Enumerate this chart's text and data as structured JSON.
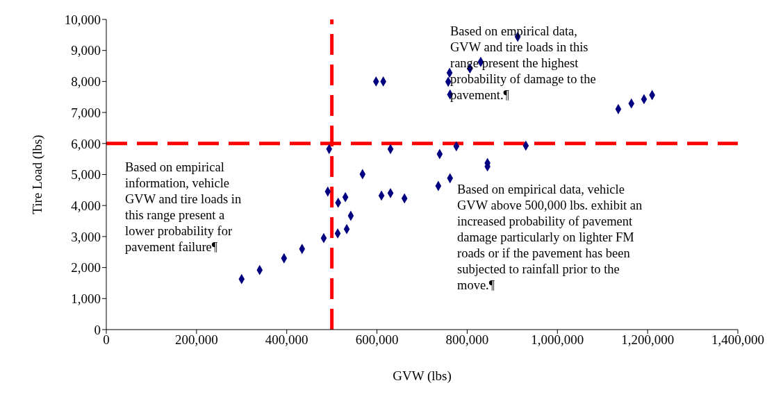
{
  "chart_data": {
    "type": "scatter",
    "xlabel": "GVW (lbs)",
    "ylabel": "Tire Load (lbs)",
    "x": [
      300000,
      340000,
      394000,
      434000,
      482000,
      513000,
      533000,
      542000,
      514000,
      530000,
      491000,
      494000,
      568000,
      610000,
      630000,
      661000,
      630000,
      736000,
      762000,
      739000,
      776000,
      598000,
      614000,
      912000,
      761000,
      758000,
      762000,
      806000,
      830000,
      1135000,
      1164000,
      1192000,
      1210000,
      930000,
      845000,
      845000
    ],
    "series": [
      {
        "color": "#000080",
        "marker": "diamond",
        "values": [
          1630,
          1920,
          2300,
          2600,
          2950,
          3100,
          3240,
          3670,
          4090,
          4270,
          4450,
          5820,
          5010,
          4320,
          4400,
          4230,
          5820,
          4630,
          4880,
          5660,
          5910,
          8000,
          8000,
          9440,
          8280,
          7990,
          7580,
          8420,
          8630,
          7110,
          7290,
          7430,
          7560,
          5930,
          5370,
          5260
        ]
      }
    ],
    "xlim": [
      0,
      1400000
    ],
    "xticks": [
      {
        "value": 0,
        "label": "0"
      },
      {
        "value": 200000,
        "label": "200,000"
      },
      {
        "value": 400000,
        "label": "400,000"
      },
      {
        "value": 600000,
        "label": "600,000"
      },
      {
        "value": 800000,
        "label": "800,000"
      },
      {
        "value": 1000000,
        "label": "1,000,000"
      },
      {
        "value": 1200000,
        "label": "1,200,000"
      },
      {
        "value": 1400000,
        "label": "1,400,000"
      }
    ],
    "ylim": [
      0,
      10000
    ],
    "yticks": [
      {
        "value": 0,
        "label": "0"
      },
      {
        "value": 1000,
        "label": "1,000"
      },
      {
        "value": 2000,
        "label": "2,000"
      },
      {
        "value": 3000,
        "label": "3,000"
      },
      {
        "value": 4000,
        "label": "4,000"
      },
      {
        "value": 5000,
        "label": "5,000"
      },
      {
        "value": 6000,
        "label": "6,000"
      },
      {
        "value": 7000,
        "label": "7,000"
      },
      {
        "value": 8000,
        "label": "8,000"
      },
      {
        "value": 9000,
        "label": "9,000"
      },
      {
        "value": 10000,
        "label": "10,000"
      }
    ],
    "grid": false,
    "legend": false,
    "ref_lines": [
      {
        "axis": "x",
        "value": 500000,
        "color": "#ff0000",
        "line_style": "dashed"
      },
      {
        "axis": "y",
        "value": 6000,
        "color": "#ff0000",
        "line_style": "dashed"
      }
    ],
    "annotations": [
      "Based on empirical data,\nGVW and tire loads in this\nrange present the highest\nprobability of damage to the\npavement.¶",
      "Based on empirical\ninformation, vehicle\nGVW and tire loads in\nthis range present a\nlower probability for\npavement failure¶",
      "Based on empirical data, vehicle\nGVW above 500,000 lbs. exhibit an\nincreased probability of pavement\ndamage particularly on lighter FM\nroads or if the pavement has been\nsubjected to rainfall prior to the\nmove.¶"
    ]
  }
}
